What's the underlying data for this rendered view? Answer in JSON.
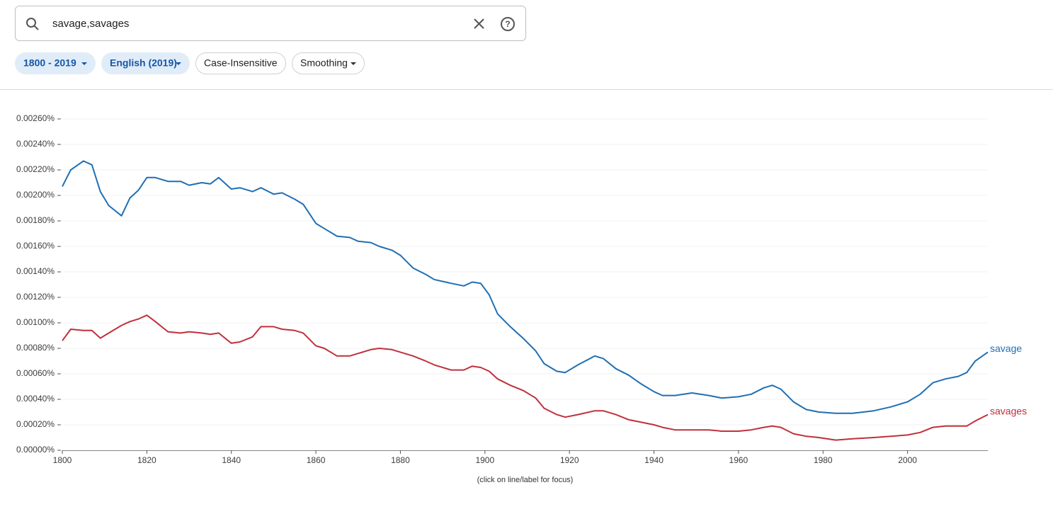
{
  "search": {
    "query": "savage,savages"
  },
  "filters": [
    "1800 - 2019",
    "English (2019)",
    "Case-Insensitive",
    "Smoothing"
  ],
  "chart_data": {
    "type": "line",
    "note": "(click on line/label for focus)",
    "x": [
      1800,
      1802,
      1805,
      1807,
      1809,
      1811,
      1814,
      1816,
      1818,
      1820,
      1822,
      1825,
      1828,
      1830,
      1833,
      1835,
      1837,
      1840,
      1842,
      1845,
      1847,
      1850,
      1852,
      1855,
      1857,
      1860,
      1862,
      1865,
      1868,
      1870,
      1873,
      1875,
      1878,
      1880,
      1883,
      1886,
      1888,
      1892,
      1895,
      1897,
      1899,
      1901,
      1903,
      1906,
      1909,
      1912,
      1914,
      1917,
      1919,
      1922,
      1926,
      1928,
      1931,
      1934,
      1937,
      1940,
      1942,
      1945,
      1949,
      1953,
      1956,
      1960,
      1963,
      1966,
      1968,
      1970,
      1973,
      1976,
      1979,
      1983,
      1987,
      1992,
      1996,
      2000,
      2003,
      2006,
      2009,
      2012,
      2014,
      2016,
      2019
    ],
    "series": [
      {
        "name": "savage",
        "color": "#1f6fb4",
        "values": [
          0.00207,
          0.0022,
          0.00227,
          0.00224,
          0.00203,
          0.00192,
          0.00184,
          0.00198,
          0.00204,
          0.00214,
          0.00214,
          0.00211,
          0.00211,
          0.00208,
          0.0021,
          0.00209,
          0.00214,
          0.00205,
          0.00206,
          0.00203,
          0.00206,
          0.00201,
          0.00202,
          0.00197,
          0.00193,
          0.00178,
          0.00174,
          0.00168,
          0.00167,
          0.00164,
          0.00163,
          0.0016,
          0.00157,
          0.00153,
          0.00143,
          0.00138,
          0.00134,
          0.00131,
          0.00129,
          0.00132,
          0.00131,
          0.00122,
          0.00107,
          0.00097,
          0.00088,
          0.00078,
          0.00068,
          0.00062,
          0.00061,
          0.00067,
          0.00074,
          0.00072,
          0.00064,
          0.00059,
          0.00052,
          0.00046,
          0.00043,
          0.00043,
          0.00045,
          0.00043,
          0.00041,
          0.00042,
          0.00044,
          0.00049,
          0.00051,
          0.00048,
          0.00038,
          0.00032,
          0.0003,
          0.00029,
          0.00029,
          0.00031,
          0.00034,
          0.00038,
          0.00044,
          0.00053,
          0.00056,
          0.00058,
          0.00061,
          0.0007,
          0.00077
        ]
      },
      {
        "name": "savages",
        "color": "#c0303c",
        "values": [
          0.00086,
          0.00095,
          0.00094,
          0.00094,
          0.00088,
          0.00092,
          0.00098,
          0.00101,
          0.00103,
          0.00106,
          0.00101,
          0.00093,
          0.00092,
          0.00093,
          0.00092,
          0.00091,
          0.00092,
          0.00084,
          0.00085,
          0.00089,
          0.00097,
          0.00097,
          0.00095,
          0.00094,
          0.00092,
          0.00082,
          0.0008,
          0.00074,
          0.00074,
          0.00076,
          0.00079,
          0.0008,
          0.00079,
          0.00077,
          0.00074,
          0.0007,
          0.00067,
          0.00063,
          0.00063,
          0.00066,
          0.00065,
          0.00062,
          0.00056,
          0.00051,
          0.00047,
          0.00041,
          0.00033,
          0.00028,
          0.00026,
          0.00028,
          0.00031,
          0.00031,
          0.00028,
          0.00024,
          0.00022,
          0.0002,
          0.00018,
          0.00016,
          0.00016,
          0.00016,
          0.00015,
          0.00015,
          0.00016,
          0.00018,
          0.00019,
          0.00018,
          0.00013,
          0.00011,
          0.0001,
          8e-05,
          9e-05,
          0.0001,
          0.00011,
          0.00012,
          0.00014,
          0.00018,
          0.00019,
          0.00019,
          0.00019,
          0.00023,
          0.00028
        ]
      }
    ],
    "xlim": [
      1800,
      2019
    ],
    "xticks": [
      1800,
      1820,
      1840,
      1860,
      1880,
      1900,
      1920,
      1940,
      1960,
      1980,
      2000
    ],
    "ylim": [
      0,
      0.0026
    ],
    "yticks": [
      {
        "value": 0,
        "label": "0.00000%"
      },
      {
        "value": 0.0002,
        "label": "0.00020%"
      },
      {
        "value": 0.0004,
        "label": "0.00040%"
      },
      {
        "value": 0.0006,
        "label": "0.00060%"
      },
      {
        "value": 0.0008,
        "label": "0.00080%"
      },
      {
        "value": 0.001,
        "label": "0.00100%"
      },
      {
        "value": 0.0012,
        "label": "0.00120%"
      },
      {
        "value": 0.0014,
        "label": "0.00140%"
      },
      {
        "value": 0.0016,
        "label": "0.00160%"
      },
      {
        "value": 0.0018,
        "label": "0.00180%"
      },
      {
        "value": 0.002,
        "label": "0.00200%"
      },
      {
        "value": 0.0022,
        "label": "0.00220%"
      },
      {
        "value": 0.0024,
        "label": "0.00240%"
      },
      {
        "value": 0.0026,
        "label": "0.00260%"
      }
    ],
    "grid": true
  }
}
